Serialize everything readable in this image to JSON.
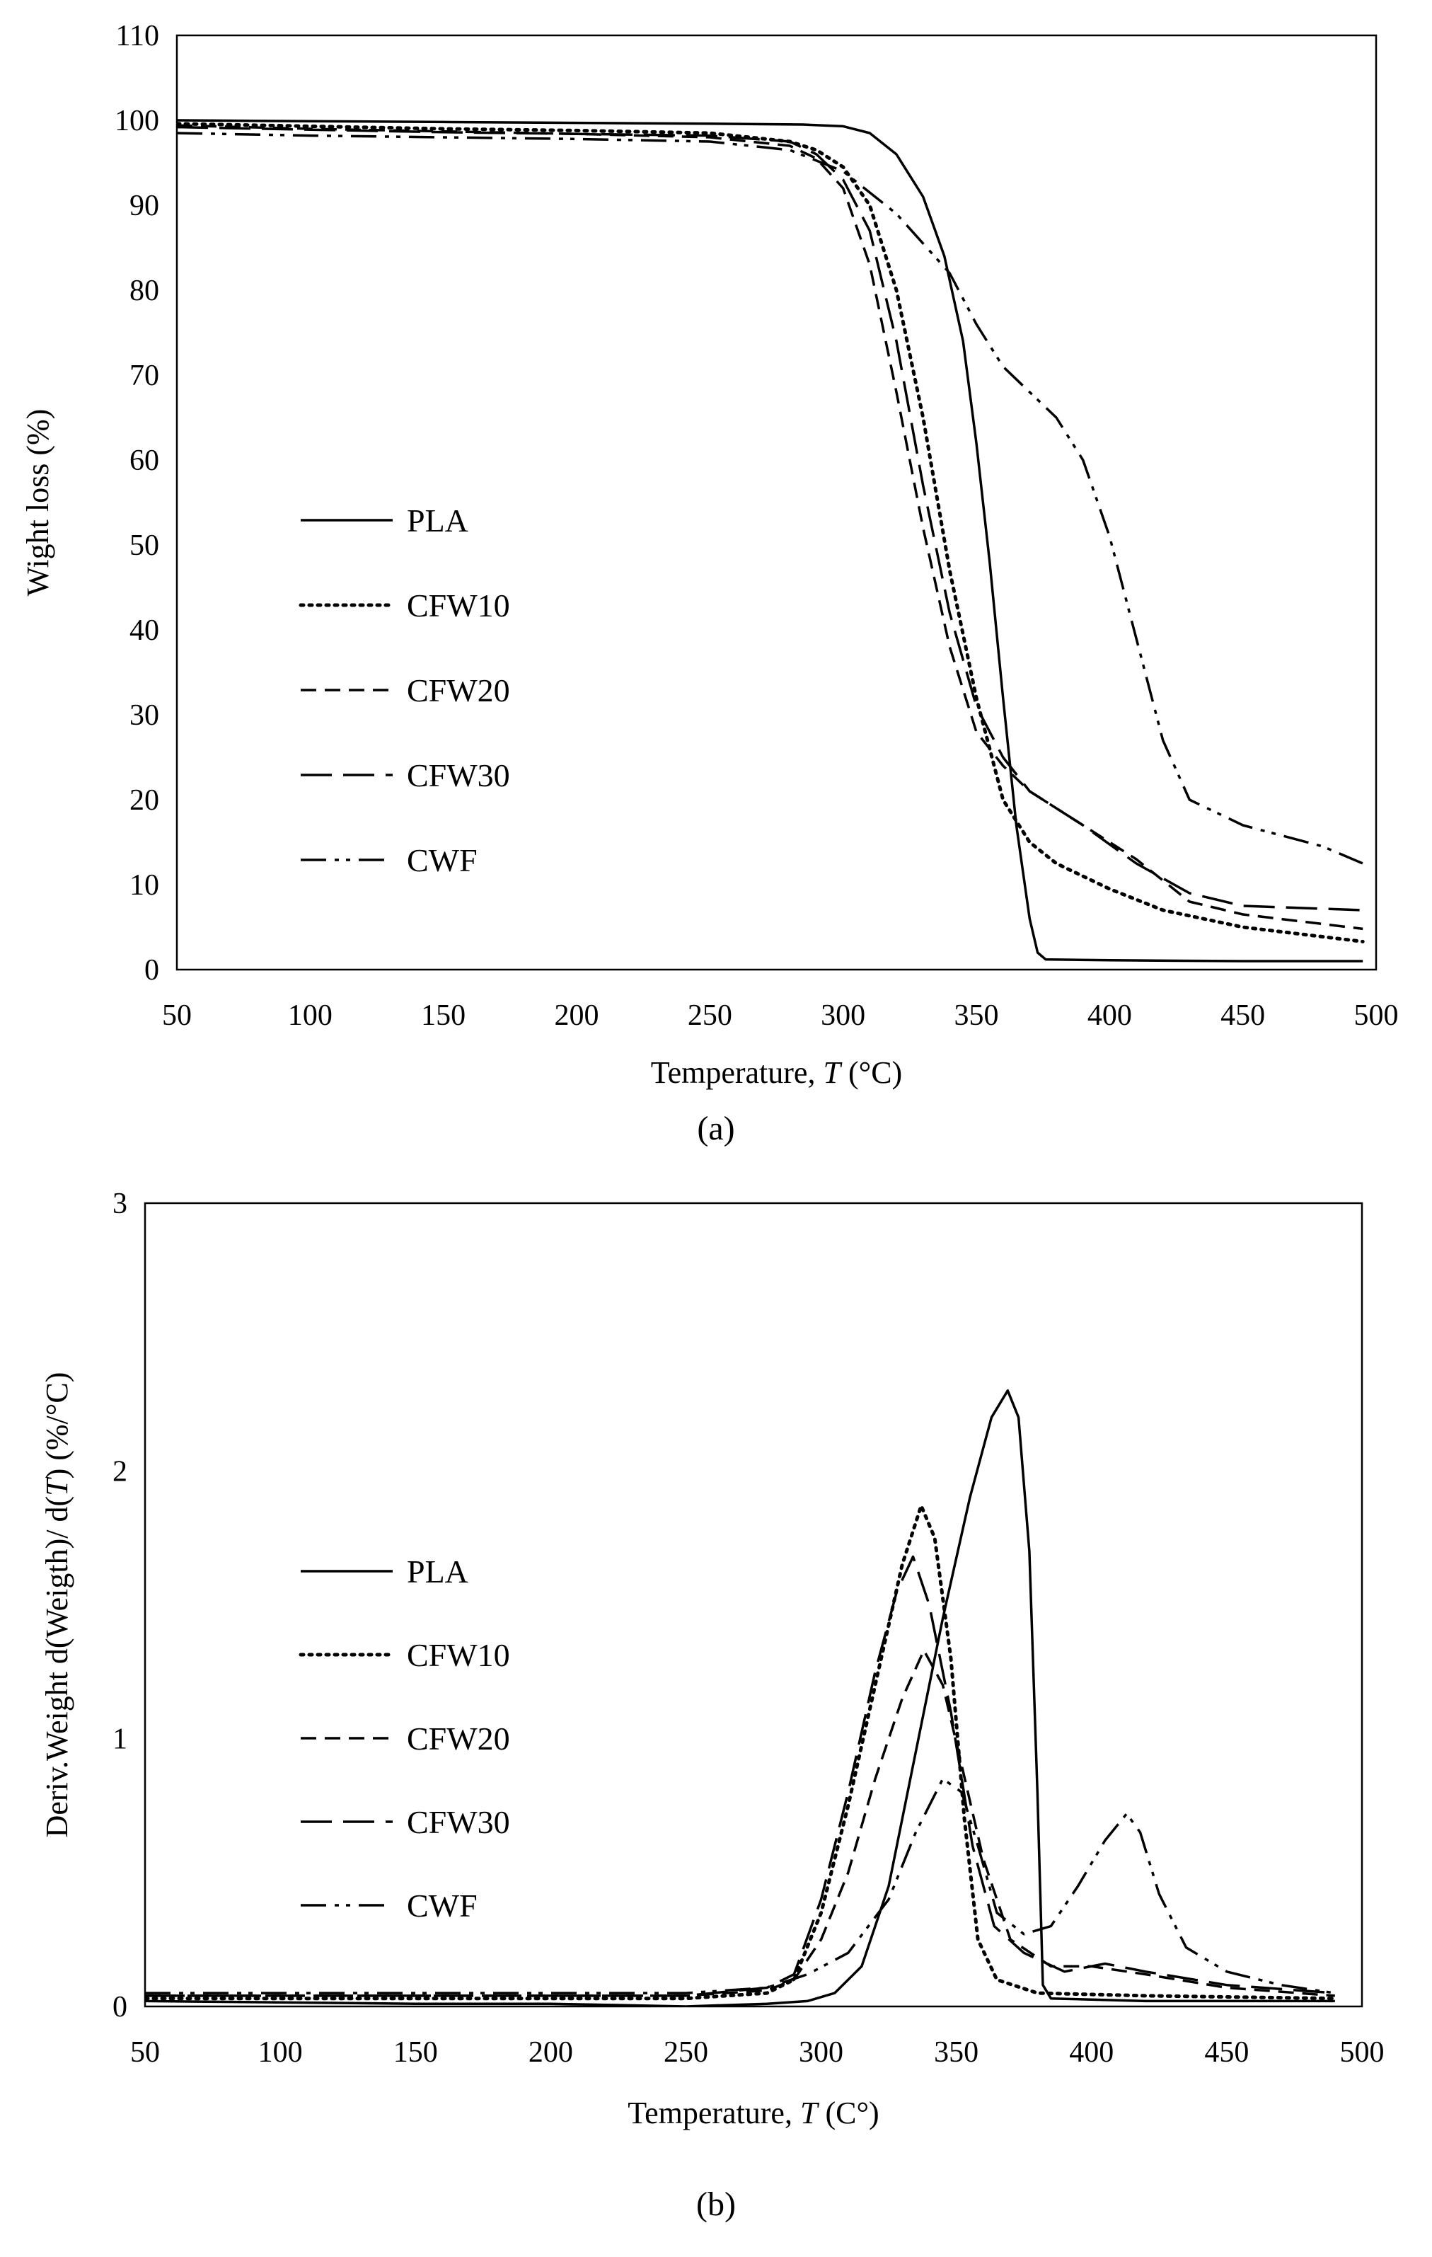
{
  "figure": {
    "panels": [
      {
        "caption": "(a)"
      },
      {
        "caption": "(b)"
      }
    ]
  },
  "chart_data": [
    {
      "type": "line",
      "panel": "(a)",
      "title": "",
      "xlabel": "Temperature, ",
      "xlabel_var": "T",
      "xlabel_unit": " (°C)",
      "ylabel": "Wight loss (%)",
      "xlim": [
        50,
        500
      ],
      "ylim": [
        0,
        110
      ],
      "xticks": [
        50,
        100,
        150,
        200,
        250,
        300,
        350,
        400,
        450,
        500
      ],
      "yticks": [
        0,
        10,
        20,
        30,
        40,
        50,
        60,
        70,
        80,
        90,
        100,
        110
      ],
      "grid": false,
      "legend_position": "left-middle",
      "series": [
        {
          "name": "PLA",
          "style": "solid",
          "points": [
            [
              50,
              100
            ],
            [
              100,
              99.9
            ],
            [
              150,
              99.8
            ],
            [
              200,
              99.7
            ],
            [
              250,
              99.6
            ],
            [
              285,
              99.5
            ],
            [
              300,
              99.3
            ],
            [
              310,
              98.5
            ],
            [
              320,
              96
            ],
            [
              330,
              91
            ],
            [
              338,
              84
            ],
            [
              345,
              74
            ],
            [
              350,
              62
            ],
            [
              355,
              48
            ],
            [
              360,
              32
            ],
            [
              365,
              17
            ],
            [
              370,
              6
            ],
            [
              373,
              2
            ],
            [
              376,
              1.2
            ],
            [
              400,
              1.1
            ],
            [
              450,
              1.0
            ],
            [
              495,
              1.0
            ]
          ]
        },
        {
          "name": "CFW10",
          "style": "dotted",
          "points": [
            [
              50,
              99.6
            ],
            [
              100,
              99.3
            ],
            [
              150,
              99
            ],
            [
              200,
              98.8
            ],
            [
              250,
              98.5
            ],
            [
              280,
              97.5
            ],
            [
              290,
              96.5
            ],
            [
              300,
              94.5
            ],
            [
              310,
              90
            ],
            [
              320,
              80
            ],
            [
              330,
              65
            ],
            [
              340,
              47
            ],
            [
              350,
              32
            ],
            [
              360,
              20
            ],
            [
              370,
              15
            ],
            [
              380,
              12.5
            ],
            [
              400,
              9.5
            ],
            [
              420,
              7
            ],
            [
              450,
              5
            ],
            [
              495,
              3.3
            ]
          ]
        },
        {
          "name": "CFW20",
          "style": "dashed",
          "points": [
            [
              50,
              99.4
            ],
            [
              100,
              99
            ],
            [
              150,
              98.7
            ],
            [
              200,
              98.4
            ],
            [
              250,
              98
            ],
            [
              280,
              97
            ],
            [
              290,
              95.5
            ],
            [
              300,
              92
            ],
            [
              310,
              83
            ],
            [
              320,
              68
            ],
            [
              330,
              52
            ],
            [
              340,
              38
            ],
            [
              350,
              28
            ],
            [
              360,
              24
            ],
            [
              370,
              21
            ],
            [
              390,
              17
            ],
            [
              410,
              13
            ],
            [
              430,
              8
            ],
            [
              450,
              6.5
            ],
            [
              495,
              4.8
            ]
          ]
        },
        {
          "name": "CFW30",
          "style": "longdash",
          "points": [
            [
              50,
              99.2
            ],
            [
              100,
              98.9
            ],
            [
              150,
              98.6
            ],
            [
              200,
              98.4
            ],
            [
              250,
              98.2
            ],
            [
              280,
              97.5
            ],
            [
              290,
              96
            ],
            [
              300,
              93
            ],
            [
              310,
              87
            ],
            [
              320,
              74
            ],
            [
              330,
              57
            ],
            [
              340,
              42
            ],
            [
              350,
              31
            ],
            [
              360,
              25
            ],
            [
              370,
              21
            ],
            [
              390,
              17
            ],
            [
              410,
              12.5
            ],
            [
              430,
              9
            ],
            [
              450,
              7.5
            ],
            [
              495,
              7
            ]
          ]
        },
        {
          "name": "CWF",
          "style": "dashdotdot",
          "points": [
            [
              50,
              98.5
            ],
            [
              100,
              98.2
            ],
            [
              150,
              98
            ],
            [
              200,
              97.8
            ],
            [
              250,
              97.5
            ],
            [
              280,
              96.5
            ],
            [
              300,
              94
            ],
            [
              320,
              89
            ],
            [
              340,
              82
            ],
            [
              350,
              76
            ],
            [
              360,
              71
            ],
            [
              370,
              68
            ],
            [
              380,
              65
            ],
            [
              390,
              60
            ],
            [
              400,
              51
            ],
            [
              410,
              39
            ],
            [
              420,
              27
            ],
            [
              430,
              20
            ],
            [
              450,
              17
            ],
            [
              480,
              14.5
            ],
            [
              495,
              12.5
            ]
          ]
        }
      ]
    },
    {
      "type": "line",
      "panel": "(b)",
      "title": "",
      "xlabel": "Temperature, ",
      "xlabel_var": "T",
      "xlabel_unit": " (C°)",
      "ylabel_pre": "Deriv.Weight  d(Weigth)/ d(",
      "ylabel_var": "T",
      "ylabel_post": ") (%/°C)",
      "xlim": [
        50,
        500
      ],
      "ylim": [
        0,
        3
      ],
      "xticks": [
        50,
        100,
        150,
        200,
        250,
        300,
        350,
        400,
        450,
        500
      ],
      "yticks": [
        0,
        1,
        2,
        3
      ],
      "grid": false,
      "legend_position": "left-middle",
      "series": [
        {
          "name": "PLA",
          "style": "solid",
          "points": [
            [
              50,
              0.02
            ],
            [
              150,
              0.01
            ],
            [
              200,
              0.01
            ],
            [
              250,
              0.0
            ],
            [
              280,
              0.01
            ],
            [
              295,
              0.02
            ],
            [
              305,
              0.05
            ],
            [
              315,
              0.15
            ],
            [
              325,
              0.45
            ],
            [
              335,
              0.95
            ],
            [
              345,
              1.45
            ],
            [
              355,
              1.9
            ],
            [
              363,
              2.2
            ],
            [
              369,
              2.3
            ],
            [
              373,
              2.2
            ],
            [
              377,
              1.7
            ],
            [
              380,
              0.8
            ],
            [
              382,
              0.08
            ],
            [
              385,
              0.03
            ],
            [
              420,
              0.02
            ],
            [
              490,
              0.02
            ]
          ]
        },
        {
          "name": "CFW10",
          "style": "dotted",
          "points": [
            [
              50,
              0.03
            ],
            [
              150,
              0.03
            ],
            [
              250,
              0.03
            ],
            [
              280,
              0.05
            ],
            [
              290,
              0.1
            ],
            [
              300,
              0.35
            ],
            [
              310,
              0.75
            ],
            [
              320,
              1.2
            ],
            [
              330,
              1.65
            ],
            [
              337,
              1.87
            ],
            [
              342,
              1.75
            ],
            [
              348,
              1.3
            ],
            [
              353,
              0.7
            ],
            [
              358,
              0.25
            ],
            [
              365,
              0.1
            ],
            [
              380,
              0.05
            ],
            [
              420,
              0.04
            ],
            [
              490,
              0.03
            ]
          ]
        },
        {
          "name": "CFW20",
          "style": "dashed",
          "points": [
            [
              50,
              0.04
            ],
            [
              150,
              0.04
            ],
            [
              250,
              0.04
            ],
            [
              280,
              0.06
            ],
            [
              290,
              0.1
            ],
            [
              300,
              0.25
            ],
            [
              310,
              0.5
            ],
            [
              320,
              0.85
            ],
            [
              330,
              1.15
            ],
            [
              338,
              1.33
            ],
            [
              345,
              1.2
            ],
            [
              352,
              0.9
            ],
            [
              360,
              0.55
            ],
            [
              370,
              0.25
            ],
            [
              385,
              0.15
            ],
            [
              400,
              0.15
            ],
            [
              420,
              0.12
            ],
            [
              450,
              0.07
            ],
            [
              490,
              0.04
            ]
          ]
        },
        {
          "name": "CFW30",
          "style": "longdash",
          "points": [
            [
              50,
              0.04
            ],
            [
              150,
              0.04
            ],
            [
              250,
              0.04
            ],
            [
              280,
              0.07
            ],
            [
              290,
              0.12
            ],
            [
              300,
              0.4
            ],
            [
              310,
              0.8
            ],
            [
              320,
              1.25
            ],
            [
              328,
              1.55
            ],
            [
              334,
              1.68
            ],
            [
              340,
              1.5
            ],
            [
              348,
              1.1
            ],
            [
              356,
              0.6
            ],
            [
              364,
              0.3
            ],
            [
              375,
              0.2
            ],
            [
              390,
              0.13
            ],
            [
              405,
              0.16
            ],
            [
              420,
              0.13
            ],
            [
              450,
              0.08
            ],
            [
              490,
              0.05
            ]
          ]
        },
        {
          "name": "CWF",
          "style": "dashdotdot",
          "points": [
            [
              50,
              0.05
            ],
            [
              150,
              0.05
            ],
            [
              250,
              0.05
            ],
            [
              280,
              0.07
            ],
            [
              295,
              0.12
            ],
            [
              310,
              0.2
            ],
            [
              325,
              0.4
            ],
            [
              335,
              0.65
            ],
            [
              345,
              0.85
            ],
            [
              352,
              0.8
            ],
            [
              358,
              0.6
            ],
            [
              365,
              0.35
            ],
            [
              375,
              0.27
            ],
            [
              385,
              0.3
            ],
            [
              395,
              0.45
            ],
            [
              405,
              0.62
            ],
            [
              413,
              0.72
            ],
            [
              418,
              0.65
            ],
            [
              425,
              0.42
            ],
            [
              435,
              0.22
            ],
            [
              450,
              0.13
            ],
            [
              470,
              0.08
            ],
            [
              490,
              0.05
            ]
          ]
        }
      ]
    }
  ]
}
